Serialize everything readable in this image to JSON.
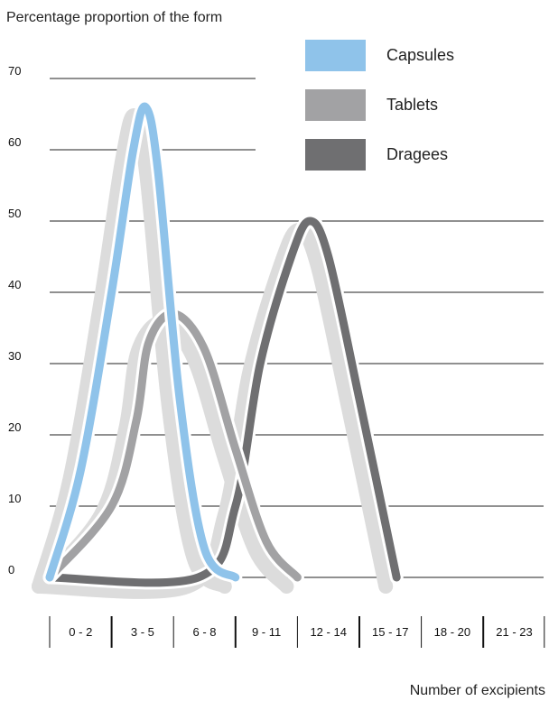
{
  "chart_data": {
    "type": "line",
    "ylabel": "Percentage proportion of the form",
    "xlabel": "Number of excipients",
    "categories": [
      "0 - 2",
      "3 - 5",
      "6 - 8",
      "9 - 11",
      "12 - 14",
      "15 - 17",
      "18 - 20",
      "21 - 23"
    ],
    "yticks": [
      0,
      10,
      20,
      30,
      40,
      50,
      60,
      70
    ],
    "ylim": [
      0,
      70
    ],
    "grid": true,
    "legend_position": "top-right",
    "series": [
      {
        "name": "Capsules",
        "color": "#8fc3ea",
        "points": [
          [
            0.0,
            0
          ],
          [
            0.5,
            15
          ],
          [
            1.0,
            40
          ],
          [
            1.35,
            60
          ],
          [
            1.55,
            66
          ],
          [
            1.75,
            57
          ],
          [
            2.1,
            25
          ],
          [
            2.5,
            4
          ],
          [
            3.0,
            0
          ]
        ]
      },
      {
        "name": "Tablets",
        "color": "#a2a2a4",
        "points": [
          [
            0.0,
            0
          ],
          [
            1.0,
            10
          ],
          [
            1.4,
            22
          ],
          [
            1.6,
            33
          ],
          [
            2.0,
            37
          ],
          [
            2.5,
            32
          ],
          [
            3.0,
            18
          ],
          [
            3.5,
            5
          ],
          [
            4.0,
            0
          ]
        ]
      },
      {
        "name": "Dragees",
        "color": "#6f6f71",
        "points": [
          [
            0.0,
            0
          ],
          [
            2.4,
            0
          ],
          [
            3.0,
            10
          ],
          [
            3.4,
            30
          ],
          [
            3.9,
            45
          ],
          [
            4.2,
            50
          ],
          [
            4.5,
            45
          ],
          [
            5.0,
            25
          ],
          [
            5.6,
            0
          ]
        ]
      }
    ]
  }
}
